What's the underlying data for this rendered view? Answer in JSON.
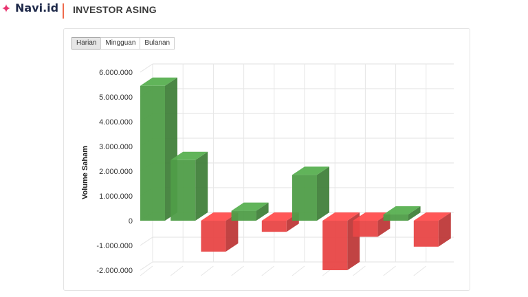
{
  "header": {
    "logo_text": "Navi.id",
    "title": "INVESTOR ASING"
  },
  "tabs": [
    {
      "label": "Harian",
      "active": true
    },
    {
      "label": "Mingguan",
      "active": false
    },
    {
      "label": "Bulanan",
      "active": false
    }
  ],
  "colors": {
    "positive": "#4f9d48",
    "negative": "#e84646",
    "accent": "#ef6a4c",
    "logo_icon": "#e8336f"
  },
  "chart_data": {
    "type": "bar",
    "title": "",
    "xlabel": "",
    "ylabel": "Volume Saham",
    "ylim": [
      -2000000,
      6000000
    ],
    "yticks": [
      6000000,
      5000000,
      4000000,
      3000000,
      2000000,
      1000000,
      0,
      -1000000,
      -2000000
    ],
    "ytick_labels": [
      "6.000.000",
      "5.000.000",
      "4.000.000",
      "3.000.000",
      "2.000.000",
      "1.000.000",
      "0",
      "-1.000.000",
      "-2.000.000"
    ],
    "grid": true,
    "three_d": true,
    "values": [
      5450000,
      2450000,
      -1250000,
      400000,
      -450000,
      1850000,
      -2000000,
      -650000,
      250000,
      -1050000
    ]
  }
}
